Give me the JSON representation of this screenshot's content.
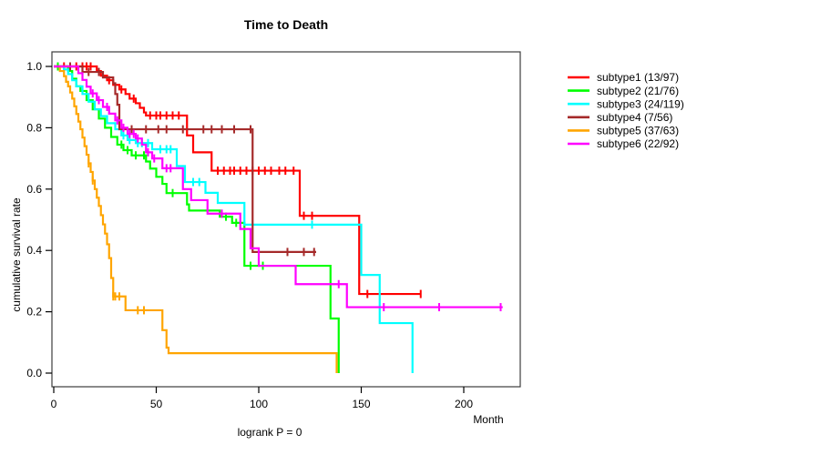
{
  "figure": {
    "title": "Time to Death",
    "x_axis_label": "Month",
    "y_axis_label": "cumulative survival rate",
    "footnote": "logrank P = 0"
  },
  "chart_data": {
    "type": "line",
    "variant": "kaplan_meier_step_curves",
    "title": "Time to Death",
    "xlabel": "Month",
    "ylabel": "cumulative survival rate",
    "annotation": "logrank P = 0",
    "x_ticks": [
      0,
      50,
      100,
      150,
      200
    ],
    "y_tick_labels": [
      "0.0",
      "0.2",
      "0.4",
      "0.6",
      "0.8",
      "1.0"
    ],
    "xlim": [
      0,
      228
    ],
    "ylim": [
      0,
      1
    ],
    "grid": false,
    "legend_position": "right-outside",
    "axis_color": "#3c3c3c",
    "series": [
      {
        "name": "subtype1",
        "label": "subtype1 (13/97)",
        "color": "#FF0000",
        "steps": [
          [
            0,
            1.0
          ],
          [
            21,
            0.985
          ],
          [
            23,
            0.97
          ],
          [
            26,
            0.955
          ],
          [
            29,
            0.94
          ],
          [
            32,
            0.925
          ],
          [
            35,
            0.91
          ],
          [
            37,
            0.895
          ],
          [
            40,
            0.88
          ],
          [
            42,
            0.865
          ],
          [
            44,
            0.85
          ],
          [
            45,
            0.84
          ],
          [
            65,
            0.775
          ],
          [
            68,
            0.72
          ],
          [
            77,
            0.66
          ],
          [
            120,
            0.513
          ],
          [
            149,
            0.258
          ],
          [
            179,
            0.258
          ]
        ],
        "censors": [
          2,
          5,
          8,
          11,
          14,
          16,
          18,
          27,
          33,
          39,
          47,
          50,
          52,
          55,
          58,
          61,
          80,
          83,
          86,
          88,
          91,
          94,
          97,
          100,
          103,
          106,
          110,
          113,
          117,
          122,
          126,
          153,
          179
        ]
      },
      {
        "name": "subtype2",
        "label": "subtype2 (21/76)",
        "color": "#00FF00",
        "steps": [
          [
            0,
            1.0
          ],
          [
            7,
            0.985
          ],
          [
            9,
            0.96
          ],
          [
            11,
            0.935
          ],
          [
            13,
            0.92
          ],
          [
            16,
            0.89
          ],
          [
            19,
            0.86
          ],
          [
            22,
            0.83
          ],
          [
            25,
            0.8
          ],
          [
            28,
            0.77
          ],
          [
            31,
            0.745
          ],
          [
            34,
            0.727
          ],
          [
            38,
            0.71
          ],
          [
            45,
            0.69
          ],
          [
            47,
            0.667
          ],
          [
            50,
            0.64
          ],
          [
            53,
            0.617
          ],
          [
            55,
            0.587
          ],
          [
            65,
            0.55
          ],
          [
            66,
            0.53
          ],
          [
            81,
            0.51
          ],
          [
            87,
            0.49
          ],
          [
            93,
            0.35
          ],
          [
            135,
            0.178
          ],
          [
            139,
            0.0
          ]
        ],
        "censors": [
          2,
          33,
          36,
          40,
          44,
          58,
          84,
          89,
          96,
          102
        ]
      },
      {
        "name": "subtype3",
        "label": "subtype3 (24/119)",
        "color": "#00FFFF",
        "steps": [
          [
            0,
            1.0
          ],
          [
            5,
            0.99
          ],
          [
            7,
            0.975
          ],
          [
            9,
            0.955
          ],
          [
            11,
            0.935
          ],
          [
            14,
            0.91
          ],
          [
            17,
            0.885
          ],
          [
            20,
            0.86
          ],
          [
            23,
            0.838
          ],
          [
            26,
            0.815
          ],
          [
            30,
            0.795
          ],
          [
            33,
            0.775
          ],
          [
            36,
            0.76
          ],
          [
            40,
            0.75
          ],
          [
            48,
            0.73
          ],
          [
            60,
            0.675
          ],
          [
            64,
            0.623
          ],
          [
            74,
            0.588
          ],
          [
            80,
            0.555
          ],
          [
            93,
            0.484
          ],
          [
            150,
            0.32
          ],
          [
            159,
            0.163
          ],
          [
            175,
            0.0
          ]
        ],
        "censors": [
          34,
          37,
          41,
          43,
          46,
          52,
          55,
          57,
          68,
          71,
          126
        ]
      },
      {
        "name": "subtype4",
        "label": "subtype4 (7/56)",
        "color": "#A52A2A",
        "steps": [
          [
            0,
            1.0
          ],
          [
            14,
            0.982
          ],
          [
            24,
            0.964
          ],
          [
            29,
            0.945
          ],
          [
            30,
            0.91
          ],
          [
            31,
            0.875
          ],
          [
            32,
            0.795
          ],
          [
            97,
            0.395
          ],
          [
            128,
            0.395
          ]
        ],
        "censors": [
          8,
          17,
          22,
          38,
          45,
          51,
          55,
          63,
          73,
          77,
          82,
          88,
          96,
          114,
          122,
          127
        ]
      },
      {
        "name": "subtype5",
        "label": "subtype5 (37/63)",
        "color": "#FFA500",
        "steps": [
          [
            0,
            1.0
          ],
          [
            3,
            0.985
          ],
          [
            5,
            0.968
          ],
          [
            6,
            0.95
          ],
          [
            7,
            0.935
          ],
          [
            8,
            0.915
          ],
          [
            9,
            0.895
          ],
          [
            10,
            0.87
          ],
          [
            11,
            0.845
          ],
          [
            12,
            0.82
          ],
          [
            13,
            0.795
          ],
          [
            14,
            0.768
          ],
          [
            15,
            0.74
          ],
          [
            16,
            0.712
          ],
          [
            17,
            0.684
          ],
          [
            18,
            0.656
          ],
          [
            19,
            0.628
          ],
          [
            20,
            0.6
          ],
          [
            21,
            0.572
          ],
          [
            22,
            0.545
          ],
          [
            23,
            0.515
          ],
          [
            24,
            0.485
          ],
          [
            25,
            0.455
          ],
          [
            26,
            0.42
          ],
          [
            27,
            0.375
          ],
          [
            28,
            0.31
          ],
          [
            29,
            0.25
          ],
          [
            35,
            0.205
          ],
          [
            53,
            0.14
          ],
          [
            55,
            0.083
          ],
          [
            56,
            0.065
          ],
          [
            138,
            0.0
          ]
        ],
        "censors": [
          17,
          19,
          29,
          30,
          32,
          41,
          44
        ]
      },
      {
        "name": "subtype6",
        "label": "subtype6 (22/92)",
        "color": "#FF00FF",
        "steps": [
          [
            0,
            1.0
          ],
          [
            12,
            0.978
          ],
          [
            14,
            0.956
          ],
          [
            16,
            0.934
          ],
          [
            18,
            0.912
          ],
          [
            21,
            0.89
          ],
          [
            24,
            0.868
          ],
          [
            27,
            0.846
          ],
          [
            30,
            0.824
          ],
          [
            33,
            0.8
          ],
          [
            36,
            0.78
          ],
          [
            40,
            0.765
          ],
          [
            43,
            0.745
          ],
          [
            45,
            0.72
          ],
          [
            48,
            0.7
          ],
          [
            53,
            0.668
          ],
          [
            63,
            0.6
          ],
          [
            67,
            0.564
          ],
          [
            75,
            0.52
          ],
          [
            91,
            0.47
          ],
          [
            96,
            0.407
          ],
          [
            100,
            0.35
          ],
          [
            118,
            0.29
          ],
          [
            143,
            0.215
          ],
          [
            219,
            0.215
          ]
        ],
        "censors": [
          19,
          22,
          26,
          31,
          34,
          37,
          39,
          41,
          46,
          49,
          55,
          57,
          82,
          139,
          161,
          188,
          218
        ]
      }
    ]
  }
}
